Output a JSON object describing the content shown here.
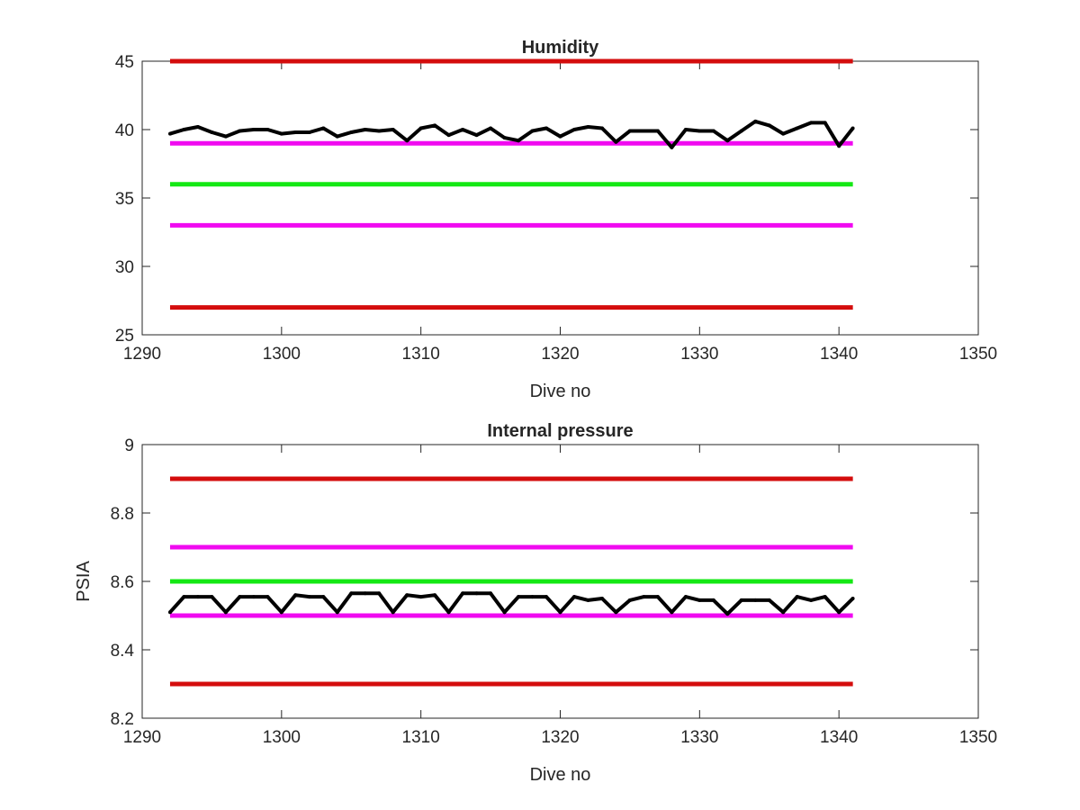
{
  "colors": {
    "series": "#000000",
    "red_limit": "#d40d0d",
    "magenta_limit": "#f00af0",
    "green_target": "#14e814",
    "axis": "#262626"
  },
  "chart_data": [
    {
      "type": "line",
      "title": "Humidity",
      "xlabel": "Dive no",
      "ylabel": "",
      "xlim": [
        1290,
        1350
      ],
      "ylim": [
        25,
        45
      ],
      "xticks": [
        "1290",
        "1300",
        "1310",
        "1320",
        "1330",
        "1340",
        "1350"
      ],
      "yticks": [
        "25",
        "30",
        "35",
        "40",
        "45"
      ],
      "grid": false,
      "hlines": [
        {
          "color": "red_limit",
          "y": 45,
          "x": [
            1292,
            1341
          ]
        },
        {
          "color": "magenta_limit",
          "y": 39,
          "x": [
            1292,
            1341
          ]
        },
        {
          "color": "green_target",
          "y": 36,
          "x": [
            1292,
            1341
          ]
        },
        {
          "color": "magenta_limit",
          "y": 33,
          "x": [
            1292,
            1341
          ]
        },
        {
          "color": "red_limit",
          "y": 27,
          "x": [
            1292,
            1341
          ]
        }
      ],
      "series": [
        {
          "color": "series",
          "x": [
            1292,
            1293,
            1294,
            1295,
            1296,
            1297,
            1298,
            1299,
            1300,
            1301,
            1302,
            1303,
            1304,
            1305,
            1306,
            1307,
            1308,
            1309,
            1310,
            1311,
            1312,
            1313,
            1314,
            1315,
            1316,
            1317,
            1318,
            1319,
            1320,
            1321,
            1322,
            1323,
            1324,
            1325,
            1326,
            1327,
            1328,
            1329,
            1330,
            1331,
            1332,
            1333,
            1334,
            1335,
            1336,
            1337,
            1338,
            1339,
            1340,
            1341
          ],
          "y": [
            39.7,
            40.0,
            40.2,
            39.8,
            39.5,
            39.9,
            40.0,
            40.0,
            39.7,
            39.8,
            39.8,
            40.1,
            39.5,
            39.8,
            40.0,
            39.9,
            40.0,
            39.2,
            40.1,
            40.3,
            39.6,
            40.0,
            39.6,
            40.1,
            39.4,
            39.2,
            39.9,
            40.1,
            39.5,
            40.0,
            40.2,
            40.1,
            39.1,
            39.9,
            39.9,
            39.9,
            38.7,
            40.0,
            39.9,
            39.9,
            39.2,
            39.9,
            40.6,
            40.3,
            39.7,
            40.1,
            40.5,
            40.5,
            38.8,
            40.1
          ]
        }
      ]
    },
    {
      "type": "line",
      "title": "Internal pressure",
      "xlabel": "Dive no",
      "ylabel": "PSIA",
      "xlim": [
        1290,
        1350
      ],
      "ylim": [
        8.2,
        9.0
      ],
      "xticks": [
        "1290",
        "1300",
        "1310",
        "1320",
        "1330",
        "1340",
        "1350"
      ],
      "yticks": [
        "8.2",
        "8.4",
        "8.6",
        "8.8",
        "9"
      ],
      "grid": false,
      "hlines": [
        {
          "color": "red_limit",
          "y": 8.9,
          "x": [
            1292,
            1341
          ]
        },
        {
          "color": "magenta_limit",
          "y": 8.7,
          "x": [
            1292,
            1341
          ]
        },
        {
          "color": "green_target",
          "y": 8.6,
          "x": [
            1292,
            1341
          ]
        },
        {
          "color": "magenta_limit",
          "y": 8.5,
          "x": [
            1292,
            1341
          ]
        },
        {
          "color": "red_limit",
          "y": 8.3,
          "x": [
            1292,
            1341
          ]
        }
      ],
      "series": [
        {
          "color": "series",
          "x": [
            1292,
            1293,
            1294,
            1295,
            1296,
            1297,
            1298,
            1299,
            1300,
            1301,
            1302,
            1303,
            1304,
            1305,
            1306,
            1307,
            1308,
            1309,
            1310,
            1311,
            1312,
            1313,
            1314,
            1315,
            1316,
            1317,
            1318,
            1319,
            1320,
            1321,
            1322,
            1323,
            1324,
            1325,
            1326,
            1327,
            1328,
            1329,
            1330,
            1331,
            1332,
            1333,
            1334,
            1335,
            1336,
            1337,
            1338,
            1339,
            1340,
            1341
          ],
          "y": [
            8.51,
            8.555,
            8.555,
            8.555,
            8.51,
            8.555,
            8.555,
            8.555,
            8.51,
            8.56,
            8.555,
            8.555,
            8.51,
            8.565,
            8.565,
            8.565,
            8.51,
            8.56,
            8.555,
            8.56,
            8.51,
            8.565,
            8.565,
            8.565,
            8.51,
            8.555,
            8.555,
            8.555,
            8.51,
            8.555,
            8.545,
            8.55,
            8.51,
            8.545,
            8.555,
            8.555,
            8.51,
            8.555,
            8.545,
            8.545,
            8.505,
            8.545,
            8.545,
            8.545,
            8.51,
            8.555,
            8.545,
            8.555,
            8.51,
            8.55
          ]
        }
      ]
    }
  ]
}
